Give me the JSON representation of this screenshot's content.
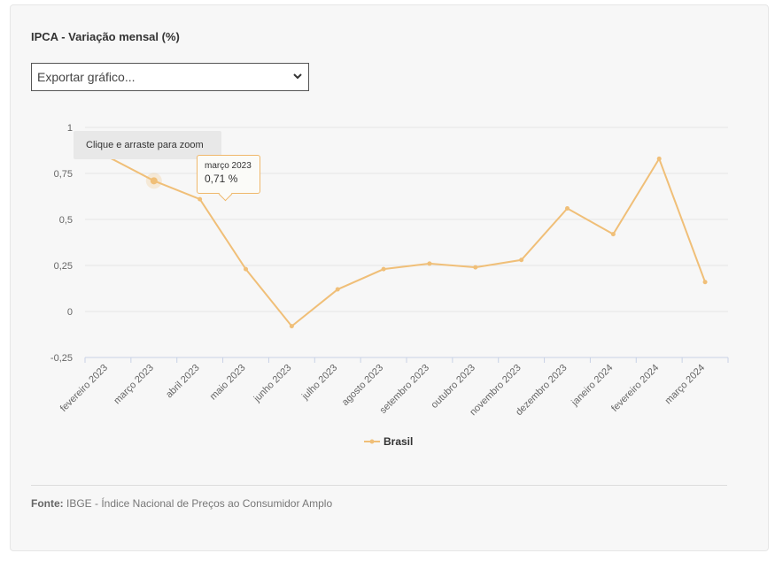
{
  "header": {
    "title": "IPCA - Variação mensal (%)"
  },
  "export_select": {
    "label": "Exportar gráfico..."
  },
  "zoom_hint": "Clique e arraste para zoom",
  "tooltip": {
    "category": "março 2023",
    "value": "0,71 %"
  },
  "source": {
    "label": "Fonte:",
    "text": " IBGE - Índice Nacional de Preços ao Consumidor Amplo"
  },
  "colors": {
    "series": "#f0bf78",
    "grid": "#e6e6e6",
    "axis": "#c8d2e6",
    "tick_text": "#666666"
  },
  "chart_data": {
    "type": "line",
    "title": "IPCA - Variação mensal (%)",
    "categories": [
      "fevereiro 2023",
      "março 2023",
      "abril 2023",
      "maio 2023",
      "junho 2023",
      "julho 2023",
      "agosto 2023",
      "setembro 2023",
      "outubro 2023",
      "novembro 2023",
      "dezembro 2023",
      "janeiro 2024",
      "fevereiro 2024",
      "março 2024"
    ],
    "series": [
      {
        "name": "Brasil",
        "values": [
          0.84,
          0.71,
          0.61,
          0.23,
          -0.08,
          0.12,
          0.23,
          0.26,
          0.24,
          0.28,
          0.56,
          0.42,
          0.83,
          0.16
        ]
      }
    ],
    "ylim": [
      -0.25,
      1
    ],
    "yticks": [
      1,
      0.75,
      0.5,
      0.25,
      0,
      -0.25
    ],
    "ytick_labels": [
      "1",
      "0,75",
      "0,5",
      "0,25",
      "0",
      "-0,25"
    ],
    "grid": true,
    "legend": "bottom-center",
    "highlighted_point": 1
  }
}
